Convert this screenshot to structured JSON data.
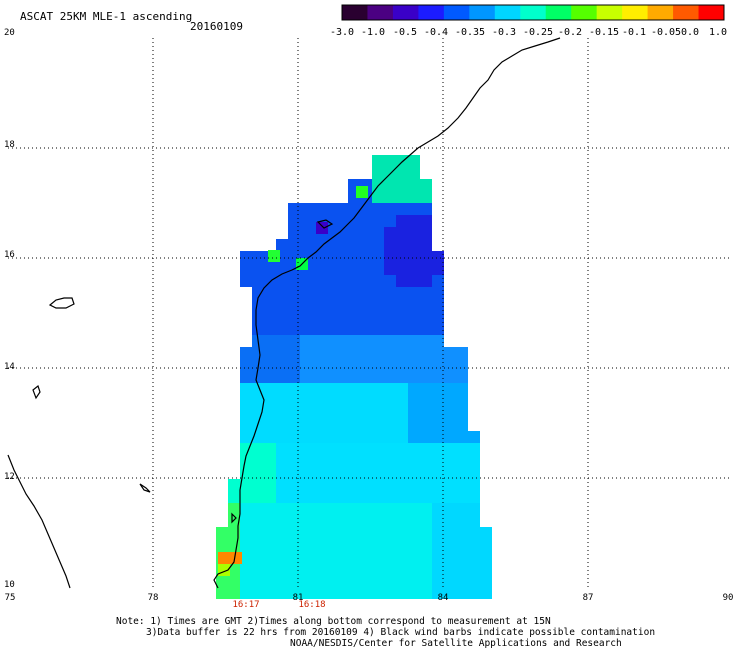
{
  "header": {
    "title": "ASCAT 25KM MLE-1 ascending",
    "date": "20160109"
  },
  "colorbar": {
    "labels": [
      "-3.0",
      "-1.0",
      "-0.5",
      "-0.4",
      "-0.35",
      "-0.3",
      "-0.25",
      "-0.2",
      "-0.15",
      "-0.1",
      "-0.05",
      "0.0",
      "1.0"
    ],
    "colors": [
      "#2a0030",
      "#4b0082",
      "#3a00c8",
      "#1c1cff",
      "#005aff",
      "#0096ff",
      "#00d6ff",
      "#00ffcc",
      "#00ff66",
      "#55ff00",
      "#c8ff00",
      "#ffee00",
      "#ffaa00",
      "#ff5a00",
      "#ff0000"
    ]
  },
  "map": {
    "lat_labels": [
      "20",
      "18",
      "16",
      "14",
      "12",
      "10"
    ],
    "lon_labels": [
      "75",
      "78",
      "81",
      "84",
      "87",
      "90"
    ],
    "time_labels": [
      "16:17",
      "16:18"
    ]
  },
  "notes": {
    "line1": "Note: 1) Times are GMT 2)Times along bottom correspond to measurement at 15N",
    "line2": "3)Data buffer is 22 hrs from 20160109 4) Black wind barbs indicate possible contamination",
    "line3": "NOAA/NESDIS/Center for Satellite Applications and Research"
  }
}
